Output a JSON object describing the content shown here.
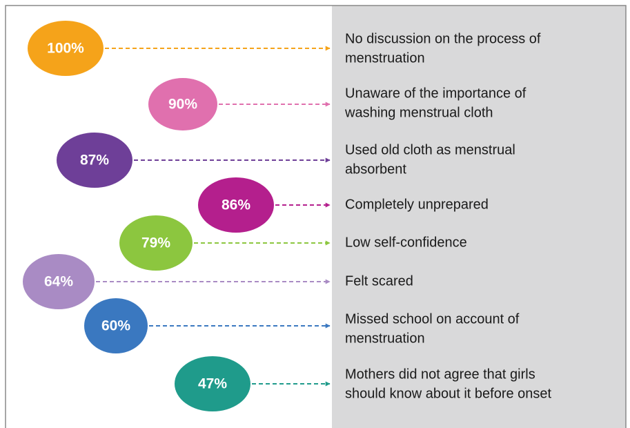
{
  "items": [
    {
      "value": "100%",
      "color": "#f5a31a",
      "label": [
        "No discussion on the process of",
        "menstruation"
      ]
    },
    {
      "value": "90%",
      "color": "#e070ae",
      "label": [
        "Unaware of the importance of",
        "washing menstrual cloth"
      ]
    },
    {
      "value": "87%",
      "color": "#6e3f98",
      "label": [
        "Used old cloth as menstrual",
        "absorbent"
      ]
    },
    {
      "value": "86%",
      "color": "#b41f8d",
      "label": [
        "Completely unprepared"
      ]
    },
    {
      "value": "79%",
      "color": "#8cc63f",
      "label": [
        "Low self-confidence"
      ]
    },
    {
      "value": "64%",
      "color": "#a98bc4",
      "label": [
        "Felt scared"
      ]
    },
    {
      "value": "60%",
      "color": "#3a78c0",
      "label": [
        "Missed school on account of",
        "menstruation"
      ]
    },
    {
      "value": "47%",
      "color": "#1f9b8b",
      "label": [
        "Mothers did not agree that girls",
        "should know about it before onset"
      ]
    }
  ]
}
